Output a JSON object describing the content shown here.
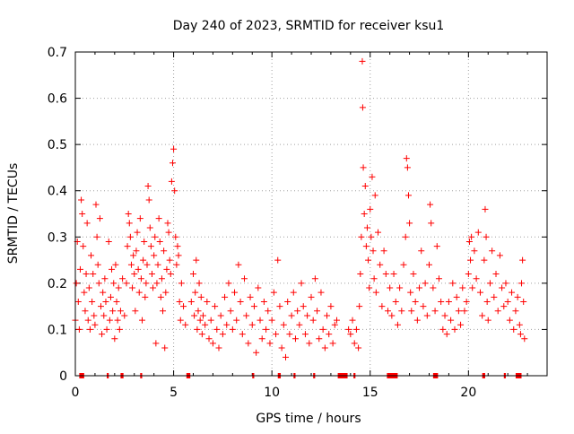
{
  "chart_data": {
    "type": "scatter",
    "title": "Day 240 of 2023, SRMTID for receiver ksu1",
    "xlabel": "GPS time / hours",
    "ylabel": "SRMTID / TECUs",
    "xlim": [
      0,
      24
    ],
    "ylim": [
      0,
      0.7
    ],
    "x_ticks": [
      0,
      5,
      10,
      15,
      20
    ],
    "y_ticks": [
      0,
      0.1,
      0.2,
      0.3,
      0.4,
      0.5,
      0.6,
      0.7
    ],
    "x_tick_labels": [
      "0",
      "5",
      "10",
      "15",
      "20"
    ],
    "y_tick_labels": [
      "0",
      "0.1",
      "0.2",
      "0.3",
      "0.4",
      "0.5",
      "0.6",
      "0.7"
    ],
    "grid": true,
    "marker": "+",
    "series_color": "#ff0000",
    "series": [
      {
        "name": "SRMTID",
        "points": [
          [
            0.0,
            0.12
          ],
          [
            0.05,
            0.2
          ],
          [
            0.1,
            0.29
          ],
          [
            0.15,
            0.16
          ],
          [
            0.2,
            0.1
          ],
          [
            0.25,
            0.23
          ],
          [
            0.3,
            0.38
          ],
          [
            0.35,
            0.35
          ],
          [
            0.4,
            0.28
          ],
          [
            0.45,
            0.18
          ],
          [
            0.5,
            0.14
          ],
          [
            0.55,
            0.22
          ],
          [
            0.6,
            0.33
          ],
          [
            0.65,
            0.12
          ],
          [
            0.7,
            0.19
          ],
          [
            0.75,
            0.1
          ],
          [
            0.8,
            0.26
          ],
          [
            0.85,
            0.16
          ],
          [
            0.9,
            0.22
          ],
          [
            0.95,
            0.13
          ],
          [
            1.0,
            0.11
          ],
          [
            1.05,
            0.37
          ],
          [
            1.1,
            0.3
          ],
          [
            1.15,
            0.24
          ],
          [
            1.2,
            0.2
          ],
          [
            1.25,
            0.34
          ],
          [
            1.3,
            0.15
          ],
          [
            1.35,
            0.09
          ],
          [
            1.4,
            0.18
          ],
          [
            1.45,
            0.13
          ],
          [
            1.5,
            0.21
          ],
          [
            1.55,
            0.16
          ],
          [
            1.6,
            0.1
          ],
          [
            1.7,
            0.29
          ],
          [
            1.75,
            0.12
          ],
          [
            1.8,
            0.17
          ],
          [
            1.85,
            0.23
          ],
          [
            1.9,
            0.14
          ],
          [
            1.95,
            0.2
          ],
          [
            2.0,
            0.08
          ],
          [
            2.05,
            0.24
          ],
          [
            2.1,
            0.16
          ],
          [
            2.15,
            0.12
          ],
          [
            2.2,
            0.19
          ],
          [
            2.25,
            0.1
          ],
          [
            2.3,
            0.14
          ],
          [
            2.4,
            0.21
          ],
          [
            2.5,
            0.13
          ],
          [
            2.6,
            0.2
          ],
          [
            2.65,
            0.28
          ],
          [
            2.7,
            0.35
          ],
          [
            2.75,
            0.33
          ],
          [
            2.8,
            0.3
          ],
          [
            2.85,
            0.24
          ],
          [
            2.9,
            0.19
          ],
          [
            2.95,
            0.26
          ],
          [
            3.0,
            0.22
          ],
          [
            3.05,
            0.14
          ],
          [
            3.1,
            0.27
          ],
          [
            3.15,
            0.31
          ],
          [
            3.2,
            0.23
          ],
          [
            3.25,
            0.18
          ],
          [
            3.3,
            0.34
          ],
          [
            3.35,
            0.21
          ],
          [
            3.4,
            0.12
          ],
          [
            3.45,
            0.25
          ],
          [
            3.5,
            0.29
          ],
          [
            3.55,
            0.17
          ],
          [
            3.6,
            0.2
          ],
          [
            3.65,
            0.24
          ],
          [
            3.7,
            0.41
          ],
          [
            3.75,
            0.38
          ],
          [
            3.8,
            0.32
          ],
          [
            3.85,
            0.28
          ],
          [
            3.9,
            0.22
          ],
          [
            3.95,
            0.19
          ],
          [
            4.0,
            0.26
          ],
          [
            4.05,
            0.3
          ],
          [
            4.1,
            0.07
          ],
          [
            4.15,
            0.2
          ],
          [
            4.2,
            0.24
          ],
          [
            4.25,
            0.34
          ],
          [
            4.3,
            0.29
          ],
          [
            4.35,
            0.17
          ],
          [
            4.4,
            0.21
          ],
          [
            4.45,
            0.14
          ],
          [
            4.5,
            0.27
          ],
          [
            4.55,
            0.06
          ],
          [
            4.6,
            0.18
          ],
          [
            4.65,
            0.23
          ],
          [
            4.7,
            0.33
          ],
          [
            4.75,
            0.31
          ],
          [
            4.8,
            0.25
          ],
          [
            4.85,
            0.22
          ],
          [
            4.9,
            0.42
          ],
          [
            4.95,
            0.46
          ],
          [
            5.0,
            0.49
          ],
          [
            5.05,
            0.4
          ],
          [
            5.1,
            0.3
          ],
          [
            5.15,
            0.24
          ],
          [
            5.2,
            0.28
          ],
          [
            5.25,
            0.26
          ],
          [
            5.3,
            0.16
          ],
          [
            5.35,
            0.12
          ],
          [
            5.4,
            0.2
          ],
          [
            5.5,
            0.15
          ],
          [
            5.6,
            0.11
          ],
          [
            5.9,
            0.16
          ],
          [
            6.0,
            0.22
          ],
          [
            6.05,
            0.13
          ],
          [
            6.1,
            0.18
          ],
          [
            6.15,
            0.25
          ],
          [
            6.2,
            0.1
          ],
          [
            6.25,
            0.14
          ],
          [
            6.3,
            0.2
          ],
          [
            6.35,
            0.12
          ],
          [
            6.4,
            0.17
          ],
          [
            6.45,
            0.09
          ],
          [
            6.5,
            0.13
          ],
          [
            6.6,
            0.11
          ],
          [
            6.7,
            0.16
          ],
          [
            6.8,
            0.08
          ],
          [
            6.9,
            0.12
          ],
          [
            7.0,
            0.07
          ],
          [
            7.1,
            0.15
          ],
          [
            7.2,
            0.1
          ],
          [
            7.3,
            0.06
          ],
          [
            7.4,
            0.13
          ],
          [
            7.5,
            0.09
          ],
          [
            7.6,
            0.17
          ],
          [
            7.7,
            0.11
          ],
          [
            7.8,
            0.2
          ],
          [
            7.9,
            0.14
          ],
          [
            8.0,
            0.1
          ],
          [
            8.1,
            0.18
          ],
          [
            8.2,
            0.12
          ],
          [
            8.3,
            0.24
          ],
          [
            8.4,
            0.16
          ],
          [
            8.5,
            0.09
          ],
          [
            8.6,
            0.21
          ],
          [
            8.7,
            0.13
          ],
          [
            8.8,
            0.07
          ],
          [
            8.9,
            0.17
          ],
          [
            9.0,
            0.11
          ],
          [
            9.1,
            0.15
          ],
          [
            9.2,
            0.05
          ],
          [
            9.3,
            0.19
          ],
          [
            9.4,
            0.12
          ],
          [
            9.5,
            0.08
          ],
          [
            9.6,
            0.16
          ],
          [
            9.7,
            0.1
          ],
          [
            9.8,
            0.14
          ],
          [
            9.9,
            0.07
          ],
          [
            10.0,
            0.12
          ],
          [
            10.1,
            0.18
          ],
          [
            10.2,
            0.09
          ],
          [
            10.3,
            0.25
          ],
          [
            10.4,
            0.15
          ],
          [
            10.5,
            0.06
          ],
          [
            10.6,
            0.11
          ],
          [
            10.7,
            0.04
          ],
          [
            10.8,
            0.16
          ],
          [
            10.9,
            0.09
          ],
          [
            11.0,
            0.13
          ],
          [
            11.1,
            0.18
          ],
          [
            11.2,
            0.08
          ],
          [
            11.3,
            0.14
          ],
          [
            11.4,
            0.11
          ],
          [
            11.5,
            0.2
          ],
          [
            11.6,
            0.15
          ],
          [
            11.7,
            0.09
          ],
          [
            11.8,
            0.13
          ],
          [
            11.9,
            0.07
          ],
          [
            12.0,
            0.17
          ],
          [
            12.1,
            0.12
          ],
          [
            12.2,
            0.21
          ],
          [
            12.3,
            0.14
          ],
          [
            12.4,
            0.08
          ],
          [
            12.5,
            0.18
          ],
          [
            12.6,
            0.1
          ],
          [
            12.7,
            0.06
          ],
          [
            12.8,
            0.13
          ],
          [
            12.9,
            0.09
          ],
          [
            13.0,
            0.15
          ],
          [
            13.1,
            0.07
          ],
          [
            13.2,
            0.11
          ],
          [
            13.3,
            0.12
          ],
          [
            13.9,
            0.1
          ],
          [
            14.0,
            0.09
          ],
          [
            14.1,
            0.12
          ],
          [
            14.2,
            0.07
          ],
          [
            14.3,
            0.1
          ],
          [
            14.4,
            0.06
          ],
          [
            14.45,
            0.15
          ],
          [
            14.5,
            0.22
          ],
          [
            14.55,
            0.3
          ],
          [
            14.6,
            0.68
          ],
          [
            14.62,
            0.58
          ],
          [
            14.65,
            0.45
          ],
          [
            14.7,
            0.35
          ],
          [
            14.75,
            0.41
          ],
          [
            14.8,
            0.28
          ],
          [
            14.85,
            0.32
          ],
          [
            14.9,
            0.25
          ],
          [
            14.95,
            0.19
          ],
          [
            15.0,
            0.36
          ],
          [
            15.05,
            0.3
          ],
          [
            15.1,
            0.43
          ],
          [
            15.15,
            0.27
          ],
          [
            15.2,
            0.21
          ],
          [
            15.25,
            0.39
          ],
          [
            15.3,
            0.18
          ],
          [
            15.4,
            0.31
          ],
          [
            15.5,
            0.24
          ],
          [
            15.6,
            0.15
          ],
          [
            15.7,
            0.27
          ],
          [
            15.8,
            0.22
          ],
          [
            15.9,
            0.14
          ],
          [
            16.0,
            0.19
          ],
          [
            16.1,
            0.13
          ],
          [
            16.2,
            0.22
          ],
          [
            16.3,
            0.16
          ],
          [
            16.4,
            0.11
          ],
          [
            16.5,
            0.19
          ],
          [
            16.6,
            0.14
          ],
          [
            16.7,
            0.24
          ],
          [
            16.8,
            0.3
          ],
          [
            16.85,
            0.47
          ],
          [
            16.9,
            0.45
          ],
          [
            16.95,
            0.39
          ],
          [
            17.0,
            0.33
          ],
          [
            17.05,
            0.18
          ],
          [
            17.1,
            0.14
          ],
          [
            17.2,
            0.22
          ],
          [
            17.3,
            0.16
          ],
          [
            17.4,
            0.12
          ],
          [
            17.5,
            0.19
          ],
          [
            17.6,
            0.27
          ],
          [
            17.7,
            0.15
          ],
          [
            17.8,
            0.2
          ],
          [
            17.9,
            0.13
          ],
          [
            18.0,
            0.24
          ],
          [
            18.05,
            0.37
          ],
          [
            18.1,
            0.33
          ],
          [
            18.2,
            0.19
          ],
          [
            18.3,
            0.14
          ],
          [
            18.4,
            0.28
          ],
          [
            18.5,
            0.21
          ],
          [
            18.6,
            0.16
          ],
          [
            18.7,
            0.1
          ],
          [
            18.8,
            0.13
          ],
          [
            18.9,
            0.09
          ],
          [
            19.0,
            0.16
          ],
          [
            19.1,
            0.12
          ],
          [
            19.2,
            0.2
          ],
          [
            19.3,
            0.1
          ],
          [
            19.4,
            0.17
          ],
          [
            19.5,
            0.14
          ],
          [
            19.6,
            0.11
          ],
          [
            19.7,
            0.19
          ],
          [
            19.8,
            0.14
          ],
          [
            19.9,
            0.16
          ],
          [
            20.0,
            0.22
          ],
          [
            20.05,
            0.29
          ],
          [
            20.1,
            0.25
          ],
          [
            20.15,
            0.3
          ],
          [
            20.2,
            0.19
          ],
          [
            20.3,
            0.27
          ],
          [
            20.4,
            0.21
          ],
          [
            20.5,
            0.31
          ],
          [
            20.6,
            0.18
          ],
          [
            20.7,
            0.13
          ],
          [
            20.8,
            0.25
          ],
          [
            20.85,
            0.36
          ],
          [
            20.9,
            0.3
          ],
          [
            20.95,
            0.16
          ],
          [
            21.0,
            0.12
          ],
          [
            21.1,
            0.2
          ],
          [
            21.2,
            0.27
          ],
          [
            21.3,
            0.17
          ],
          [
            21.4,
            0.22
          ],
          [
            21.5,
            0.14
          ],
          [
            21.6,
            0.26
          ],
          [
            21.7,
            0.19
          ],
          [
            21.8,
            0.15
          ],
          [
            21.9,
            0.2
          ],
          [
            22.0,
            0.16
          ],
          [
            22.1,
            0.12
          ],
          [
            22.2,
            0.18
          ],
          [
            22.3,
            0.1
          ],
          [
            22.4,
            0.14
          ],
          [
            22.5,
            0.17
          ],
          [
            22.6,
            0.11
          ],
          [
            22.65,
            0.09
          ],
          [
            22.7,
            0.2
          ],
          [
            22.75,
            0.25
          ],
          [
            22.8,
            0.16
          ],
          [
            22.85,
            0.08
          ]
        ]
      }
    ],
    "zero_segments": [
      [
        0.2,
        0.45
      ],
      [
        1.6,
        1.7
      ],
      [
        2.3,
        2.45
      ],
      [
        3.3,
        3.4
      ],
      [
        5.65,
        5.85
      ],
      [
        9.0,
        9.1
      ],
      [
        10.3,
        10.45
      ],
      [
        11.1,
        11.2
      ],
      [
        12.1,
        12.2
      ],
      [
        13.35,
        13.85
      ],
      [
        14.15,
        14.25
      ],
      [
        15.85,
        16.4
      ],
      [
        18.2,
        18.45
      ],
      [
        20.7,
        20.85
      ],
      [
        21.8,
        21.9
      ],
      [
        22.4,
        22.7
      ]
    ]
  }
}
